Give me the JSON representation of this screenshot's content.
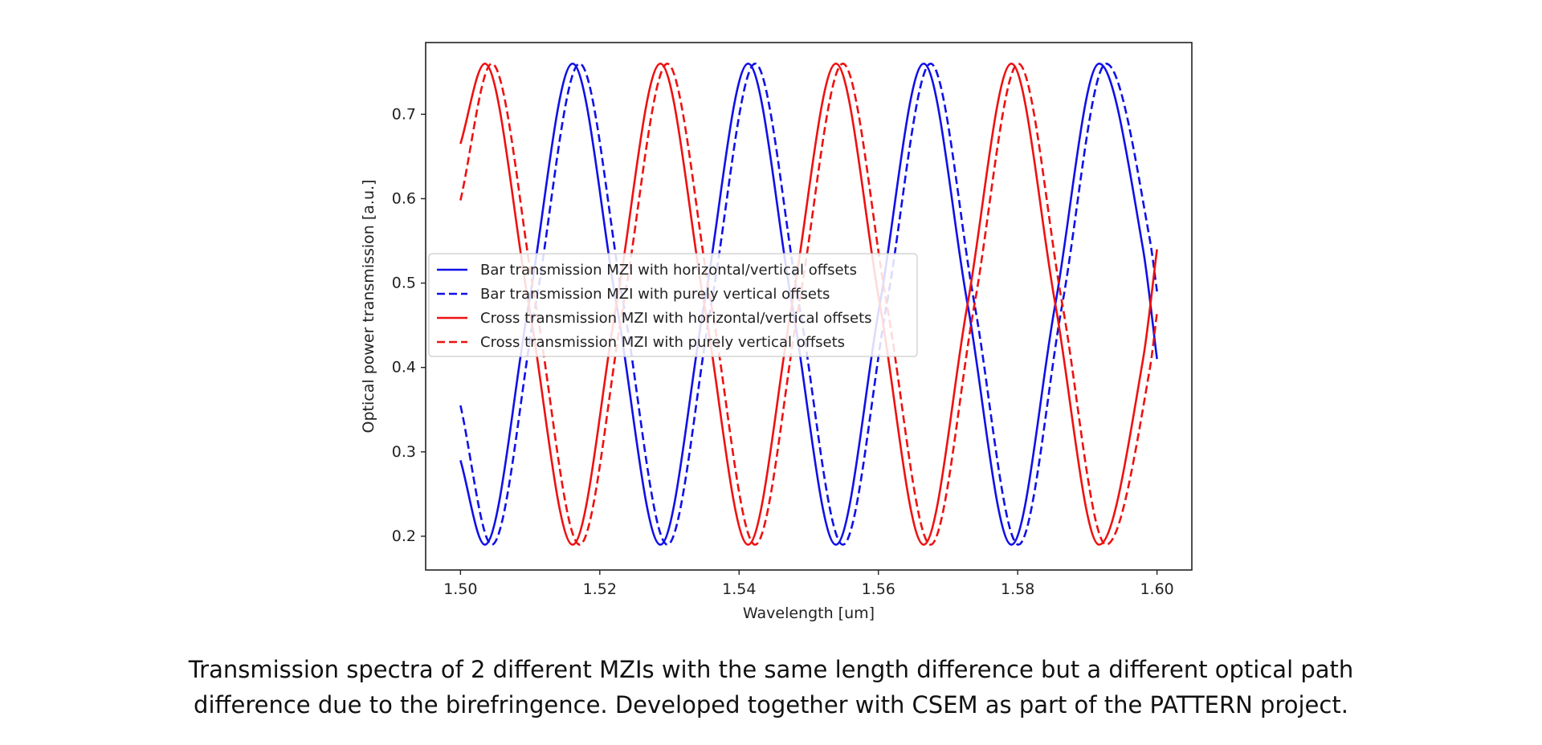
{
  "chart_data": {
    "type": "line",
    "xlabel": "Wavelength [um]",
    "ylabel": "Optical power transmission [a.u.]",
    "xlim": [
      1.495,
      1.605
    ],
    "ylim": [
      0.16,
      0.785
    ],
    "xticks": [
      "1.50",
      "1.52",
      "1.54",
      "1.56",
      "1.58",
      "1.60"
    ],
    "yticks": [
      "0.2",
      "0.3",
      "0.4",
      "0.5",
      "0.6",
      "0.7"
    ],
    "grid": false,
    "legend_position": "center-left",
    "series": [
      {
        "name": "Bar transmission MZI with horizontal/vertical offsets",
        "color": "#1010e8",
        "dash": "solid",
        "x": [
          1.5,
          1.5035,
          1.5098,
          1.5161,
          1.5224,
          1.5287,
          1.535,
          1.5413,
          1.5476,
          1.5539,
          1.5602,
          1.5665,
          1.5728,
          1.5791,
          1.5854,
          1.5917,
          1.598,
          1.6
        ],
        "y": [
          0.29,
          0.19,
          0.475,
          0.76,
          0.475,
          0.19,
          0.475,
          0.76,
          0.475,
          0.19,
          0.475,
          0.76,
          0.475,
          0.19,
          0.475,
          0.76,
          0.54,
          0.41
        ]
      },
      {
        "name": "Bar transmission MZI with purely vertical offsets",
        "color": "#1010e8",
        "dash": "dashed",
        "x": [
          1.5,
          1.5045,
          1.5108,
          1.5171,
          1.5234,
          1.5297,
          1.536,
          1.5423,
          1.5486,
          1.5549,
          1.5612,
          1.5675,
          1.5738,
          1.5801,
          1.5864,
          1.5927,
          1.599,
          1.6
        ],
        "y": [
          0.355,
          0.19,
          0.475,
          0.76,
          0.475,
          0.19,
          0.475,
          0.76,
          0.475,
          0.19,
          0.475,
          0.76,
          0.475,
          0.19,
          0.475,
          0.76,
          0.55,
          0.49
        ]
      },
      {
        "name": "Cross transmission MZI with horizontal/vertical offsets",
        "color": "#ee1111",
        "dash": "solid",
        "x": [
          1.5,
          1.5035,
          1.5098,
          1.5161,
          1.5224,
          1.5287,
          1.535,
          1.5413,
          1.5476,
          1.5539,
          1.5602,
          1.5665,
          1.5728,
          1.5791,
          1.5854,
          1.5917,
          1.598,
          1.6
        ],
        "y": [
          0.665,
          0.76,
          0.475,
          0.19,
          0.475,
          0.76,
          0.475,
          0.19,
          0.475,
          0.76,
          0.475,
          0.19,
          0.475,
          0.76,
          0.475,
          0.19,
          0.41,
          0.54
        ]
      },
      {
        "name": "Cross transmission MZI with purely vertical offsets",
        "color": "#ee1111",
        "dash": "dashed",
        "x": [
          1.5,
          1.5045,
          1.5108,
          1.5171,
          1.5234,
          1.5297,
          1.536,
          1.5423,
          1.5486,
          1.5549,
          1.5612,
          1.5675,
          1.5738,
          1.5801,
          1.5864,
          1.5927,
          1.599,
          1.6
        ],
        "y": [
          0.598,
          0.76,
          0.475,
          0.19,
          0.475,
          0.76,
          0.475,
          0.19,
          0.475,
          0.76,
          0.475,
          0.19,
          0.475,
          0.76,
          0.475,
          0.19,
          0.4,
          0.465
        ]
      }
    ]
  },
  "caption": {
    "line1": "Transmission spectra of 2 different MZIs with the same length difference but a different optical path",
    "line2": "difference due to the birefringence.  Developed together with CSEM as part of the PATTERN project."
  }
}
